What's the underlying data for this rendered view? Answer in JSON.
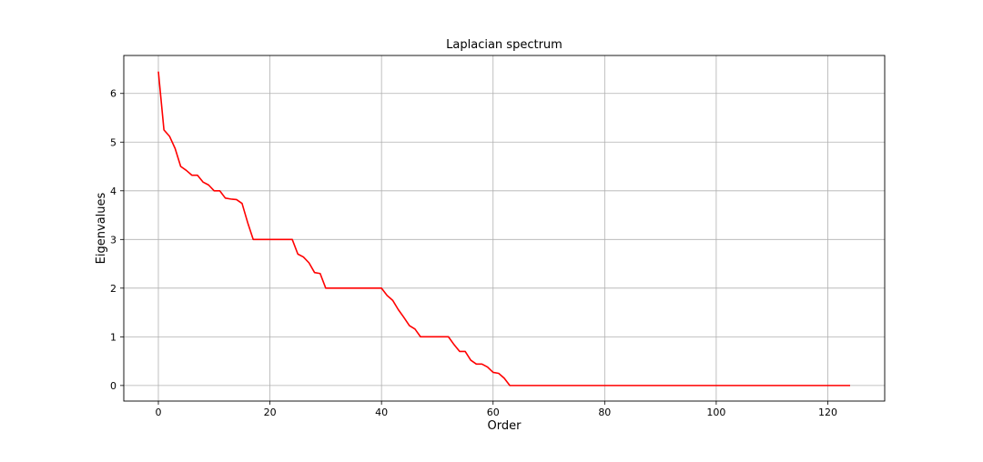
{
  "chart_data": {
    "type": "line",
    "title": "Laplacian spectrum",
    "xlabel": "Order",
    "ylabel": "Eigenvalues",
    "xlim": [
      -6.2,
      130.2
    ],
    "ylim": [
      -0.32,
      6.78
    ],
    "xticks": [
      0,
      20,
      40,
      60,
      80,
      100,
      120
    ],
    "yticks": [
      0,
      1,
      2,
      3,
      4,
      5,
      6
    ],
    "grid": true,
    "series": [
      {
        "color": "#ff0000",
        "points": [
          [
            0,
            6.45
          ],
          [
            1,
            5.25
          ],
          [
            2,
            5.12
          ],
          [
            3,
            4.87
          ],
          [
            4,
            4.5
          ],
          [
            5,
            4.42
          ],
          [
            6,
            4.32
          ],
          [
            7,
            4.32
          ],
          [
            8,
            4.18
          ],
          [
            9,
            4.12
          ],
          [
            10,
            4.0
          ],
          [
            11,
            4.0
          ],
          [
            12,
            3.85
          ],
          [
            13,
            3.83
          ],
          [
            14,
            3.82
          ],
          [
            15,
            3.74
          ],
          [
            16,
            3.35
          ],
          [
            17,
            3.0
          ],
          [
            24,
            3.0
          ],
          [
            25,
            2.7
          ],
          [
            26,
            2.64
          ],
          [
            27,
            2.52
          ],
          [
            28,
            2.32
          ],
          [
            29,
            2.3
          ],
          [
            30,
            2.0
          ],
          [
            40,
            2.0
          ],
          [
            41,
            1.85
          ],
          [
            42,
            1.75
          ],
          [
            43,
            1.56
          ],
          [
            44,
            1.4
          ],
          [
            45,
            1.23
          ],
          [
            46,
            1.16
          ],
          [
            47,
            1.0
          ],
          [
            52,
            1.0
          ],
          [
            53,
            0.84
          ],
          [
            54,
            0.7
          ],
          [
            55,
            0.7
          ],
          [
            56,
            0.52
          ],
          [
            57,
            0.44
          ],
          [
            58,
            0.44
          ],
          [
            59,
            0.38
          ],
          [
            60,
            0.27
          ],
          [
            61,
            0.25
          ],
          [
            62,
            0.15
          ],
          [
            63,
            0.0
          ],
          [
            124,
            0.0
          ]
        ]
      }
    ]
  }
}
